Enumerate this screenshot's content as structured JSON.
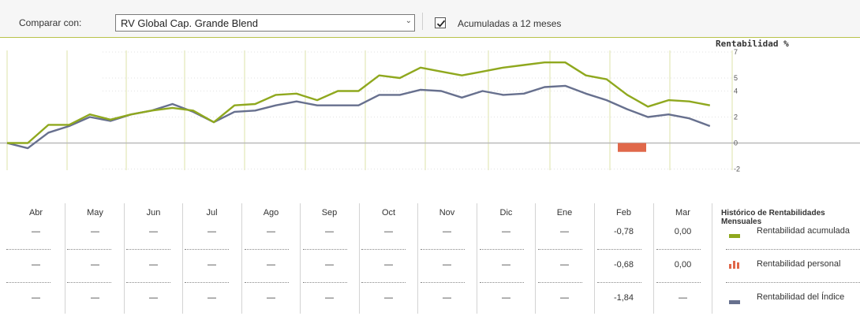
{
  "toolbar": {
    "compare_label": "Comparar con:",
    "compare_value": "RV Global Cap. Grande Blend",
    "checkbox_label": "Acumuladas a 12 meses",
    "checkbox_checked": true
  },
  "chart_data": {
    "type": "line",
    "title": "Rentabilidad %",
    "y_ticks": [
      "7",
      "5",
      "4",
      "2",
      "0",
      "-2"
    ],
    "ylim": [
      -2,
      7
    ],
    "grid": true,
    "series": [
      {
        "name": "Rentabilidad acumulada",
        "color": "#8fa81e",
        "values": [
          0,
          0,
          1.4,
          1.4,
          2.2,
          1.8,
          2.2,
          2.5,
          2.7,
          2.5,
          1.6,
          2.9,
          3.0,
          3.7,
          3.8,
          3.3,
          4.0,
          4.0,
          5.2,
          5.0,
          5.8,
          5.5,
          5.2,
          5.5,
          5.8,
          6.0,
          6.2,
          6.2,
          5.2,
          4.9,
          3.7,
          2.8,
          3.3,
          3.2,
          2.9
        ]
      },
      {
        "name": "Rentabilidad del Índice",
        "color": "#67708e",
        "values": [
          0,
          -0.4,
          0.8,
          1.3,
          2.0,
          1.7,
          2.2,
          2.5,
          3.0,
          2.4,
          1.6,
          2.4,
          2.5,
          2.9,
          3.2,
          2.9,
          2.9,
          2.9,
          3.7,
          3.7,
          4.1,
          4.0,
          3.5,
          4.0,
          3.7,
          3.8,
          4.3,
          4.4,
          3.8,
          3.3,
          2.6,
          2.0,
          2.2,
          1.9,
          1.3
        ]
      },
      {
        "name": "Rentabilidad personal",
        "color": "#e0684a",
        "type": "bar",
        "category": "Feb",
        "value": -0.68
      }
    ]
  },
  "table": {
    "history_title": "Histórico de Rentabilidades Mensuales",
    "months": [
      "Abr",
      "May",
      "Jun",
      "Jul",
      "Ago",
      "Sep",
      "Oct",
      "Nov",
      "Dic",
      "Ene",
      "Feb",
      "Mar"
    ],
    "rows": [
      [
        "—",
        "—",
        "—",
        "—",
        "—",
        "—",
        "—",
        "—",
        "—",
        "—",
        "-0,78",
        "0,00"
      ],
      [
        "—",
        "—",
        "—",
        "—",
        "—",
        "—",
        "—",
        "—",
        "—",
        "—",
        "-0,68",
        "0,00"
      ],
      [
        "—",
        "—",
        "—",
        "—",
        "—",
        "—",
        "—",
        "—",
        "—",
        "—",
        "-1,84",
        "—"
      ]
    ],
    "legend": [
      {
        "label": "Rentabilidad acumulada",
        "icon": "green-line-icon",
        "color": "#8fa81e"
      },
      {
        "label": "Rentabilidad personal",
        "icon": "bar-chart-icon",
        "color": "#e0684a"
      },
      {
        "label": "Rentabilidad del Índice",
        "icon": "gray-line-icon",
        "color": "#67708e"
      }
    ]
  }
}
